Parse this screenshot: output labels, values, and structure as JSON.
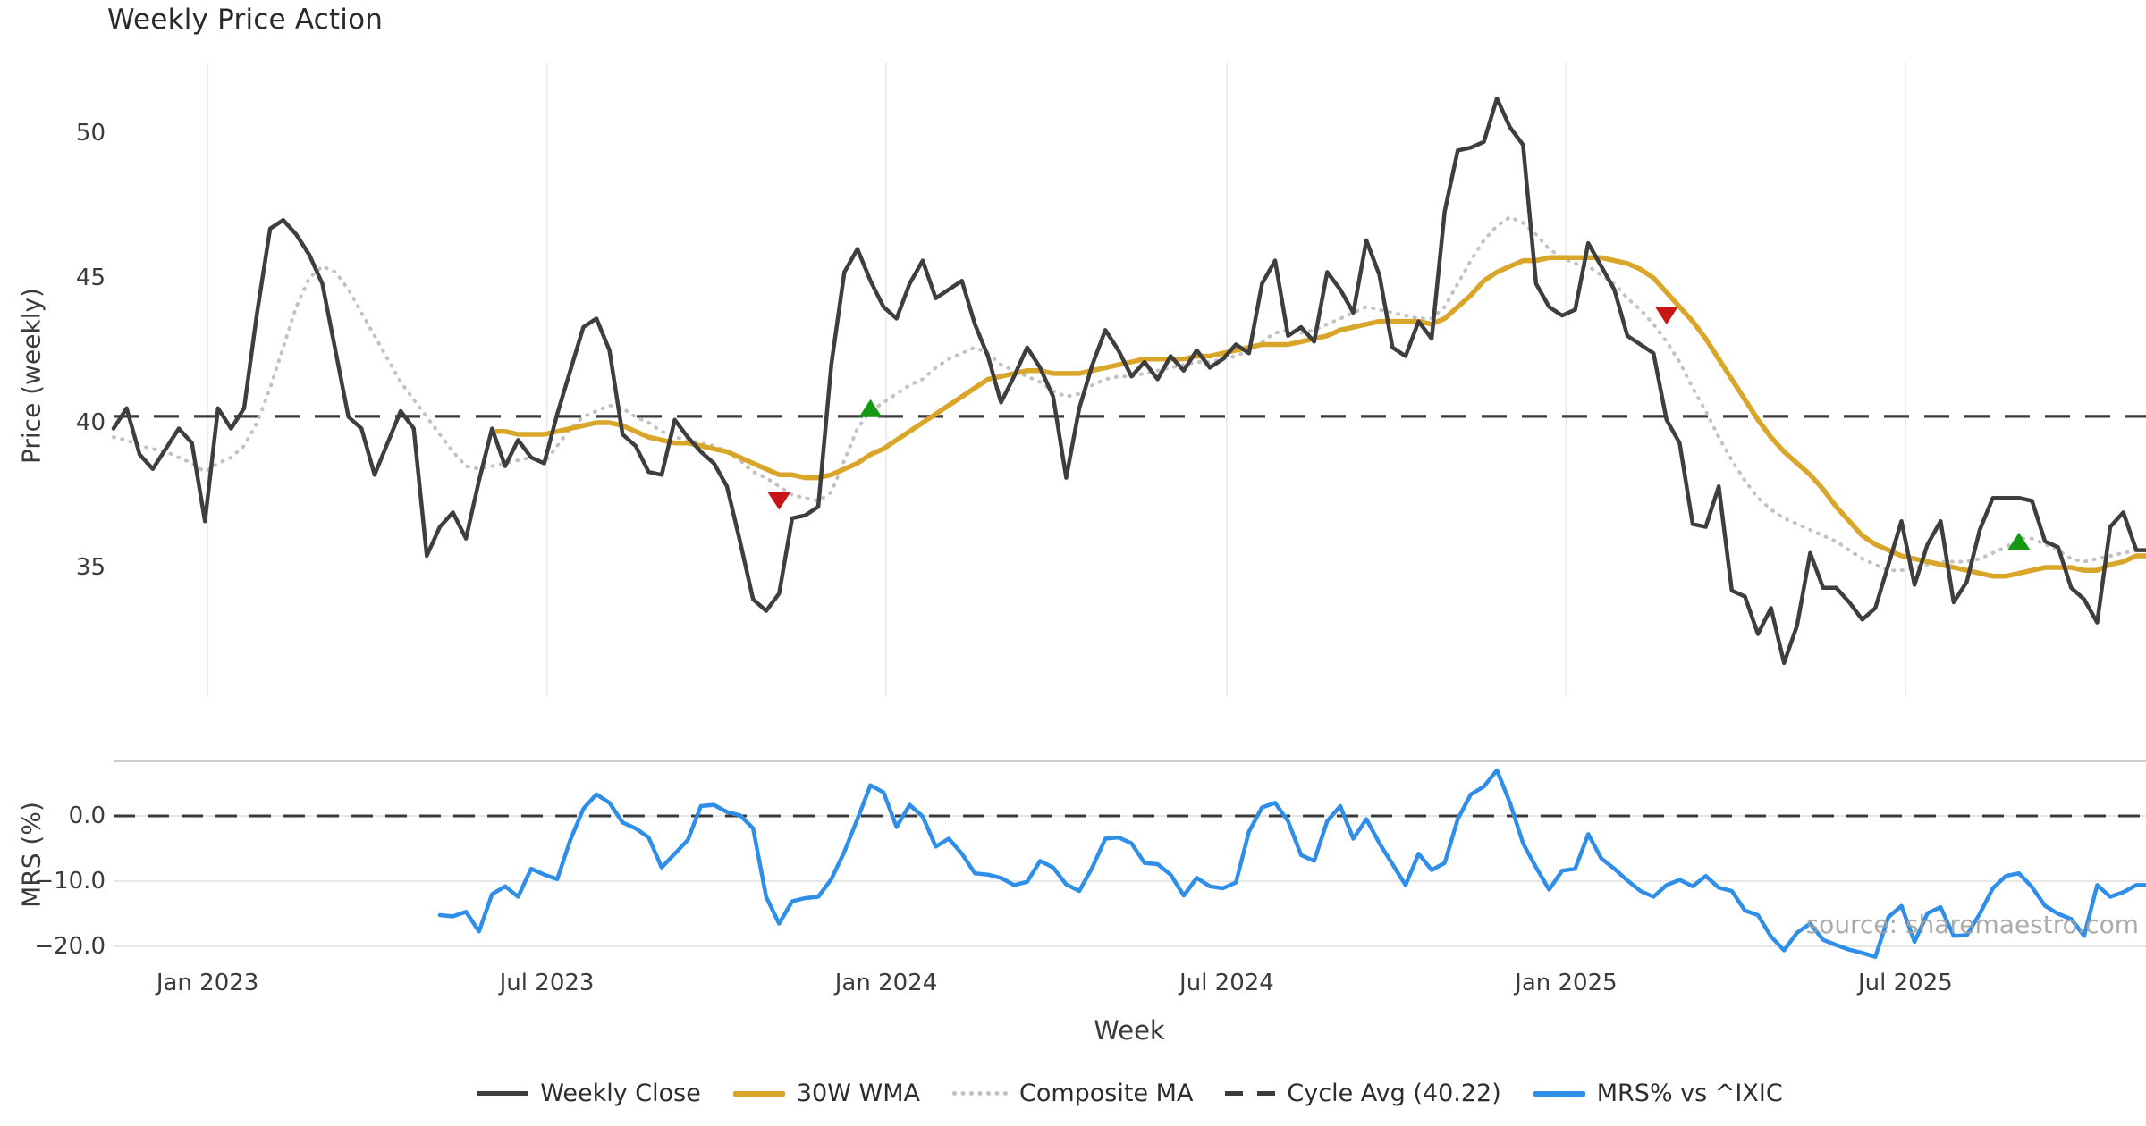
{
  "figure": {
    "title": "Weekly Price Action",
    "watermark": "source: sharemaestro.com"
  },
  "colors": {
    "close": "#3e3e3e",
    "wma": "#d9a62a",
    "composite": "#c2c2c2",
    "cycle_avg": "#3a3a3a",
    "mrs": "#2f8fe8",
    "buy": "#159915",
    "sell": "#c81616",
    "grid": "#ededed",
    "spine": "#cccccc",
    "text": "#3b3b3b",
    "watermark": "#a2a2a2"
  },
  "axes": {
    "x_label": "Week",
    "price_label": "Price (weekly)",
    "mrs_label": "MRS (%)",
    "price_tick_labels": [
      "50",
      "45",
      "40",
      "35"
    ],
    "price_tick_values": [
      50,
      45,
      40,
      35
    ],
    "mrs_tick_labels": [
      "0.0",
      "−10.0",
      "−20.0"
    ],
    "mrs_tick_values": [
      0,
      -10,
      -20
    ],
    "x_tick_labels": [
      "Jan 2023",
      "Jul 2023",
      "Jan 2024",
      "Jul 2024",
      "Jan 2025",
      "Jul 2025"
    ],
    "x_tick_weeks": [
      7.2,
      33.2,
      59.2,
      85.3,
      111.3,
      137.3
    ]
  },
  "legend": {
    "items": [
      {
        "label": "Weekly Close",
        "key": "close"
      },
      {
        "label": "30W WMA",
        "key": "wma"
      },
      {
        "label": "Composite MA",
        "key": "composite"
      },
      {
        "label": "Cycle Avg (40.22)",
        "key": "cycle_avg"
      },
      {
        "label": "MRS% vs ^IXIC",
        "key": "mrs"
      }
    ]
  },
  "chart_data": {
    "type": "line",
    "title": "Weekly Price Action",
    "xlabel": "Week",
    "x_axis": {
      "unit": "week_index",
      "weeks_total": 156,
      "tick_positions_weeks": [
        7.2,
        33.2,
        59.2,
        85.3,
        111.3,
        137.3
      ],
      "tick_labels": [
        "Jan 2023",
        "Jul 2023",
        "Jan 2024",
        "Jul 2024",
        "Jan 2025",
        "Jul 2025"
      ]
    },
    "panels": [
      {
        "name": "price",
        "ylabel": "Price (weekly)",
        "ylim": [
          31,
          52
        ],
        "yticks": [
          35,
          40,
          45,
          50
        ],
        "grid": "vertical-date-lines",
        "cycle_avg": 40.22,
        "series": [
          {
            "name": "Weekly Close",
            "start_week": 0,
            "values": [
              39.8,
              40.5,
              38.9,
              38.4,
              39.1,
              39.8,
              39.3,
              36.6,
              40.5,
              39.8,
              40.5,
              43.8,
              46.7,
              47.0,
              46.5,
              45.8,
              44.8,
              42.5,
              40.2,
              39.8,
              38.2,
              39.3,
              40.4,
              39.8,
              35.4,
              36.4,
              36.9,
              36.0,
              38.0,
              39.8,
              38.5,
              39.4,
              38.8,
              38.6,
              40.3,
              41.8,
              43.3,
              43.6,
              42.5,
              39.6,
              39.2,
              38.3,
              38.2,
              40.1,
              39.5,
              39.0,
              38.6,
              37.8,
              35.9,
              33.9,
              33.5,
              34.1,
              36.7,
              36.8,
              37.1,
              42.0,
              45.2,
              46.0,
              44.9,
              44.0,
              43.6,
              44.8,
              45.6,
              44.3,
              44.6,
              44.9,
              43.4,
              42.3,
              40.7,
              41.6,
              42.6,
              41.9,
              40.9,
              38.1,
              40.5,
              42.0,
              43.2,
              42.5,
              41.6,
              42.1,
              41.5,
              42.3,
              41.8,
              42.5,
              41.9,
              42.2,
              42.7,
              42.4,
              44.8,
              45.6,
              43.0,
              43.3,
              42.8,
              45.2,
              44.6,
              43.8,
              46.3,
              45.1,
              42.6,
              42.3,
              43.5,
              42.9,
              47.3,
              49.4,
              49.5,
              49.7,
              51.2,
              50.2,
              49.6,
              44.8,
              44.0,
              43.7,
              43.9,
              46.2,
              45.4,
              44.6,
              43.0,
              42.7,
              42.4,
              40.1,
              39.3,
              36.5,
              36.4,
              37.8,
              34.2,
              34.0,
              32.7,
              33.6,
              31.7,
              33.0,
              35.5,
              34.3,
              34.3,
              33.8,
              33.2,
              33.6,
              35.1,
              36.6,
              34.4,
              35.8,
              36.6,
              33.8,
              34.5,
              36.3,
              37.4,
              37.4,
              37.4,
              37.3,
              35.9,
              35.7,
              34.3,
              33.9,
              33.1,
              36.4,
              36.9,
              35.6
            ]
          },
          {
            "name": "30W WMA",
            "start_week": 29,
            "values": [
              39.7,
              39.7,
              39.6,
              39.6,
              39.6,
              39.7,
              39.8,
              39.9,
              40.0,
              40.0,
              39.9,
              39.7,
              39.5,
              39.4,
              39.3,
              39.3,
              39.2,
              39.1,
              39.0,
              38.8,
              38.6,
              38.4,
              38.2,
              38.2,
              38.1,
              38.1,
              38.2,
              38.4,
              38.6,
              38.9,
              39.1,
              39.4,
              39.7,
              40.0,
              40.3,
              40.6,
              40.9,
              41.2,
              41.5,
              41.6,
              41.7,
              41.8,
              41.8,
              41.7,
              41.7,
              41.7,
              41.8,
              41.9,
              42.0,
              42.1,
              42.2,
              42.2,
              42.2,
              42.2,
              42.3,
              42.3,
              42.4,
              42.5,
              42.6,
              42.7,
              42.7,
              42.7,
              42.8,
              42.9,
              43.0,
              43.2,
              43.3,
              43.4,
              43.5,
              43.5,
              43.5,
              43.5,
              43.4,
              43.6,
              44.0,
              44.4,
              44.9,
              45.2,
              45.4,
              45.6,
              45.6,
              45.7,
              45.7,
              45.7,
              45.7,
              45.7,
              45.6,
              45.5,
              45.3,
              45.0,
              44.5,
              44.0,
              43.5,
              42.9,
              42.2,
              41.5,
              40.8,
              40.1,
              39.5,
              39.0,
              38.6,
              38.2,
              37.7,
              37.1,
              36.6,
              36.1,
              35.8,
              35.6,
              35.4,
              35.3,
              35.2,
              35.1,
              35.0,
              34.9,
              34.8,
              34.7,
              34.7,
              34.8,
              34.9,
              35.0,
              35.0,
              35.0,
              34.9,
              34.9,
              35.1,
              35.2,
              35.4
            ]
          },
          {
            "name": "Composite MA",
            "start_week": 0,
            "values": [
              39.5,
              39.4,
              39.2,
              39.1,
              39.0,
              38.8,
              38.6,
              38.3,
              38.6,
              38.8,
              39.2,
              40.0,
              41.2,
              42.6,
              44.0,
              45.0,
              45.4,
              45.2,
              44.6,
              43.8,
              43.0,
              42.2,
              41.4,
              40.8,
              40.2,
              39.6,
              39.0,
              38.5,
              38.4,
              38.5,
              38.6,
              38.7,
              38.8,
              38.6,
              39.2,
              39.8,
              40.2,
              40.4,
              40.6,
              40.5,
              40.2,
              40.0,
              39.7,
              39.5,
              39.4,
              39.3,
              39.2,
              39.0,
              38.7,
              38.3,
              38.1,
              37.8,
              37.5,
              37.4,
              37.3,
              37.6,
              38.7,
              39.8,
              40.4,
              40.7,
              41.0,
              41.3,
              41.5,
              41.9,
              42.2,
              42.4,
              42.6,
              42.4,
              42.0,
              41.8,
              41.6,
              41.4,
              41.1,
              40.9,
              41.0,
              41.3,
              41.5,
              41.6,
              41.6,
              41.7,
              41.8,
              41.9,
              42.0,
              42.1,
              42.1,
              42.2,
              42.3,
              42.5,
              42.8,
              43.1,
              43.2,
              43.1,
              43.2,
              43.4,
              43.6,
              43.8,
              44.0,
              43.9,
              43.8,
              43.7,
              43.6,
              43.6,
              44.0,
              44.8,
              45.6,
              46.3,
              46.8,
              47.1,
              46.9,
              46.5,
              46.0,
              45.7,
              45.5,
              45.4,
              45.1,
              44.8,
              44.3,
              43.9,
              43.4,
              42.8,
              42.1,
              41.2,
              40.4,
              39.5,
              38.7,
              38.0,
              37.4,
              37.0,
              36.7,
              36.5,
              36.3,
              36.1,
              35.9,
              35.6,
              35.3,
              35.1,
              34.9,
              34.9,
              35.0,
              35.1,
              35.2,
              35.2,
              35.2,
              35.3,
              35.5,
              35.7,
              36.0,
              36.0,
              35.8,
              35.6,
              35.3,
              35.2,
              35.3,
              35.4,
              35.5,
              35.6
            ]
          }
        ],
        "markers": [
          {
            "week": 51,
            "price": 37.3,
            "type": "sell",
            "shape": "triangle-down"
          },
          {
            "week": 58,
            "price": 40.5,
            "type": "buy",
            "shape": "triangle-up"
          },
          {
            "week": 119,
            "price": 43.7,
            "type": "sell",
            "shape": "triangle-down"
          },
          {
            "week": 146,
            "price": 35.9,
            "type": "buy",
            "shape": "triangle-up"
          }
        ]
      },
      {
        "name": "mrs",
        "ylabel": "MRS (%)",
        "ylim": [
          -24,
          9
        ],
        "yticks": [
          0,
          -10,
          -20
        ],
        "zero_line": 0.0,
        "series": [
          {
            "name": "MRS% vs ^IXIC",
            "start_week": 25,
            "values": [
              -15.2,
              -15.4,
              -14.7,
              -17.7,
              -12.0,
              -10.8,
              -12.4,
              -8.1,
              -9.0,
              -9.7,
              -3.7,
              1.1,
              3.3,
              2.0,
              -1.0,
              -1.9,
              -3.3,
              -7.9,
              -5.8,
              -3.7,
              1.5,
              1.7,
              0.6,
              0.1,
              -1.9,
              -12.4,
              -16.5,
              -13.1,
              -12.6,
              -12.4,
              -9.7,
              -5.5,
              -0.5,
              4.7,
              3.6,
              -1.7,
              1.7,
              -0.1,
              -4.7,
              -3.5,
              -5.8,
              -8.8,
              -9.0,
              -9.5,
              -10.6,
              -10.1,
              -6.9,
              -7.9,
              -10.5,
              -11.5,
              -7.9,
              -3.5,
              -3.3,
              -4.2,
              -7.2,
              -7.4,
              -9.0,
              -12.2,
              -9.5,
              -10.8,
              -11.1,
              -10.2,
              -2.4,
              1.3,
              2.0,
              -0.8,
              -6.0,
              -6.9,
              -0.8,
              1.5,
              -3.5,
              -0.5,
              -4.2,
              -7.4,
              -10.6,
              -5.8,
              -8.3,
              -7.2,
              -0.5,
              3.3,
              4.5,
              7.0,
              2.0,
              -4.2,
              -7.9,
              -11.3,
              -8.4,
              -8.1,
              -2.8,
              -6.5,
              -8.1,
              -9.9,
              -11.5,
              -12.4,
              -10.6,
              -9.8,
              -10.8,
              -9.2,
              -11.0,
              -11.5,
              -14.5,
              -15.2,
              -18.5,
              -20.6,
              -17.9,
              -16.5,
              -19.0,
              -19.8,
              -20.5,
              -21.0,
              -21.6,
              -15.5,
              -13.8,
              -19.3,
              -14.9,
              -14.0,
              -18.4,
              -18.3,
              -15.0,
              -11.1,
              -9.2,
              -8.8,
              -10.9,
              -13.8,
              -15.0,
              -15.8,
              -18.4,
              -10.6,
              -12.4,
              -11.7,
              -10.6
            ]
          }
        ]
      }
    ],
    "legend_position": "bottom-center",
    "legend_entries": [
      "Weekly Close",
      "30W WMA",
      "Composite MA",
      "Cycle Avg (40.22)",
      "MRS% vs ^IXIC"
    ],
    "annotations": [
      "source: sharemaestro.com"
    ]
  }
}
